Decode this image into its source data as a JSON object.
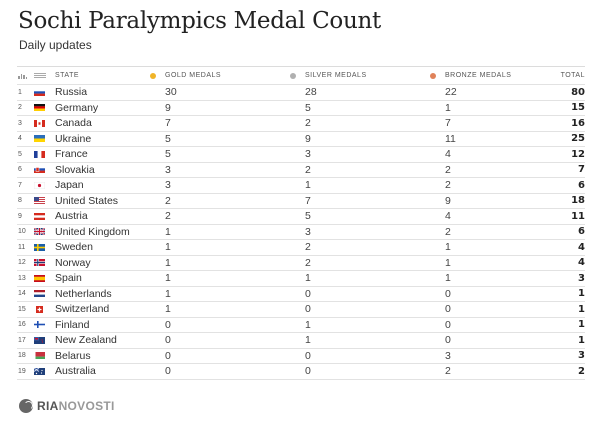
{
  "header": {
    "title": "Sochi Paralympics Medal Count",
    "subtitle": "Daily updates"
  },
  "columns": {
    "rank_icon": "bar-chart-icon",
    "flag_icon": "flag-placeholder-icon",
    "state": "STATE",
    "gold": "GOLD MEDALS",
    "silver": "SILVER MEDALS",
    "bronze": "BRONZE MEDALS",
    "total": "TOTAL"
  },
  "colors": {
    "gold": "#f0b429",
    "silver": "#b0b0b0",
    "bronze": "#e0825a"
  },
  "rows": [
    {
      "rank": "1",
      "country": "Russia",
      "flag": "russia",
      "gold": "30",
      "silver": "28",
      "bronze": "22",
      "total": "80"
    },
    {
      "rank": "2",
      "country": "Germany",
      "flag": "germany",
      "gold": "9",
      "silver": "5",
      "bronze": "1",
      "total": "15"
    },
    {
      "rank": "3",
      "country": "Canada",
      "flag": "canada",
      "gold": "7",
      "silver": "2",
      "bronze": "7",
      "total": "16"
    },
    {
      "rank": "4",
      "country": "Ukraine",
      "flag": "ukraine",
      "gold": "5",
      "silver": "9",
      "bronze": "11",
      "total": "25"
    },
    {
      "rank": "5",
      "country": "France",
      "flag": "france",
      "gold": "5",
      "silver": "3",
      "bronze": "4",
      "total": "12"
    },
    {
      "rank": "6",
      "country": "Slovakia",
      "flag": "slovakia",
      "gold": "3",
      "silver": "2",
      "bronze": "2",
      "total": "7"
    },
    {
      "rank": "7",
      "country": "Japan",
      "flag": "japan",
      "gold": "3",
      "silver": "1",
      "bronze": "2",
      "total": "6"
    },
    {
      "rank": "8",
      "country": "United States",
      "flag": "usa",
      "gold": "2",
      "silver": "7",
      "bronze": "9",
      "total": "18"
    },
    {
      "rank": "9",
      "country": "Austria",
      "flag": "austria",
      "gold": "2",
      "silver": "5",
      "bronze": "4",
      "total": "11"
    },
    {
      "rank": "10",
      "country": "United Kingdom",
      "flag": "uk",
      "gold": "1",
      "silver": "3",
      "bronze": "2",
      "total": "6"
    },
    {
      "rank": "11",
      "country": "Sweden",
      "flag": "sweden",
      "gold": "1",
      "silver": "2",
      "bronze": "1",
      "total": "4"
    },
    {
      "rank": "12",
      "country": "Norway",
      "flag": "norway",
      "gold": "1",
      "silver": "2",
      "bronze": "1",
      "total": "4"
    },
    {
      "rank": "13",
      "country": "Spain",
      "flag": "spain",
      "gold": "1",
      "silver": "1",
      "bronze": "1",
      "total": "3"
    },
    {
      "rank": "14",
      "country": "Netherlands",
      "flag": "netherlands",
      "gold": "1",
      "silver": "0",
      "bronze": "0",
      "total": "1"
    },
    {
      "rank": "15",
      "country": "Switzerland",
      "flag": "switzerland",
      "gold": "1",
      "silver": "0",
      "bronze": "0",
      "total": "1"
    },
    {
      "rank": "16",
      "country": "Finland",
      "flag": "finland",
      "gold": "0",
      "silver": "1",
      "bronze": "0",
      "total": "1"
    },
    {
      "rank": "17",
      "country": "New Zealand",
      "flag": "newzealand",
      "gold": "0",
      "silver": "1",
      "bronze": "0",
      "total": "1"
    },
    {
      "rank": "18",
      "country": "Belarus",
      "flag": "belarus",
      "gold": "0",
      "silver": "0",
      "bronze": "3",
      "total": "3"
    },
    {
      "rank": "19",
      "country": "Australia",
      "flag": "australia",
      "gold": "0",
      "silver": "0",
      "bronze": "2",
      "total": "2"
    }
  ],
  "footer": {
    "logo_part1": "RIA",
    "logo_part2": "NOVOSTI"
  },
  "chart_data": {
    "type": "table",
    "title": "Sochi Paralympics Medal Count",
    "subtitle": "Daily updates",
    "columns": [
      "Rank",
      "State",
      "Gold Medals",
      "Silver Medals",
      "Bronze Medals",
      "Total"
    ],
    "categories": [
      "Russia",
      "Germany",
      "Canada",
      "Ukraine",
      "France",
      "Slovakia",
      "Japan",
      "United States",
      "Austria",
      "United Kingdom",
      "Sweden",
      "Norway",
      "Spain",
      "Netherlands",
      "Switzerland",
      "Finland",
      "New Zealand",
      "Belarus",
      "Australia"
    ],
    "series": [
      {
        "name": "Gold Medals",
        "values": [
          30,
          9,
          7,
          5,
          5,
          3,
          3,
          2,
          2,
          1,
          1,
          1,
          1,
          1,
          1,
          0,
          0,
          0,
          0
        ]
      },
      {
        "name": "Silver Medals",
        "values": [
          28,
          5,
          2,
          9,
          3,
          2,
          1,
          7,
          5,
          3,
          2,
          2,
          1,
          0,
          0,
          1,
          1,
          0,
          0
        ]
      },
      {
        "name": "Bronze Medals",
        "values": [
          22,
          1,
          7,
          11,
          4,
          2,
          2,
          9,
          4,
          2,
          1,
          1,
          1,
          0,
          0,
          0,
          0,
          3,
          2
        ]
      },
      {
        "name": "Total",
        "values": [
          80,
          15,
          16,
          25,
          12,
          7,
          6,
          18,
          11,
          6,
          4,
          4,
          3,
          1,
          1,
          1,
          1,
          3,
          2
        ]
      }
    ]
  }
}
